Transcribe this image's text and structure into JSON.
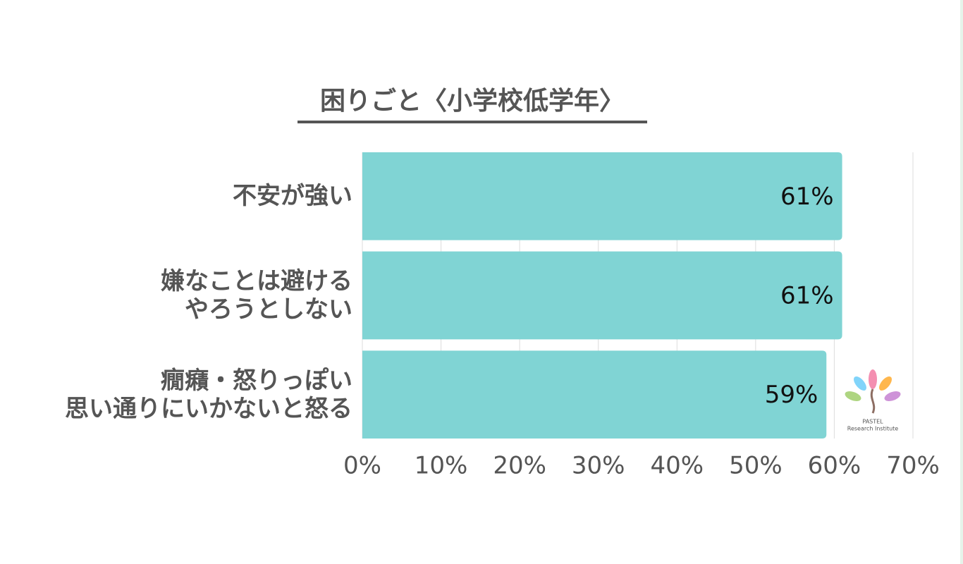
{
  "chart_data": {
    "type": "bar",
    "orientation": "horizontal",
    "title": "困りごと〈小学校低学年〉",
    "categories": [
      "不安が強い",
      "嫌なことは避ける\nやろうとしない",
      "癇癪・怒りっぽい\n思い通りにいかないと怒る"
    ],
    "values": [
      61,
      61,
      59
    ],
    "value_labels": [
      "61%",
      "61%",
      "59%"
    ],
    "color": "#80d4d4",
    "xlim": [
      0,
      70
    ],
    "xticks": [
      {
        "value": 0,
        "label": "0%"
      },
      {
        "value": 10,
        "label": "10%"
      },
      {
        "value": 20,
        "label": "20%"
      },
      {
        "value": 30,
        "label": "30%"
      },
      {
        "value": 40,
        "label": "40%"
      },
      {
        "value": 50,
        "label": "50%"
      },
      {
        "value": 60,
        "label": "60%"
      },
      {
        "value": 70,
        "label": "70%"
      }
    ],
    "grid": true,
    "watermark": [
      "PASTEL",
      "Research Institute"
    ]
  }
}
